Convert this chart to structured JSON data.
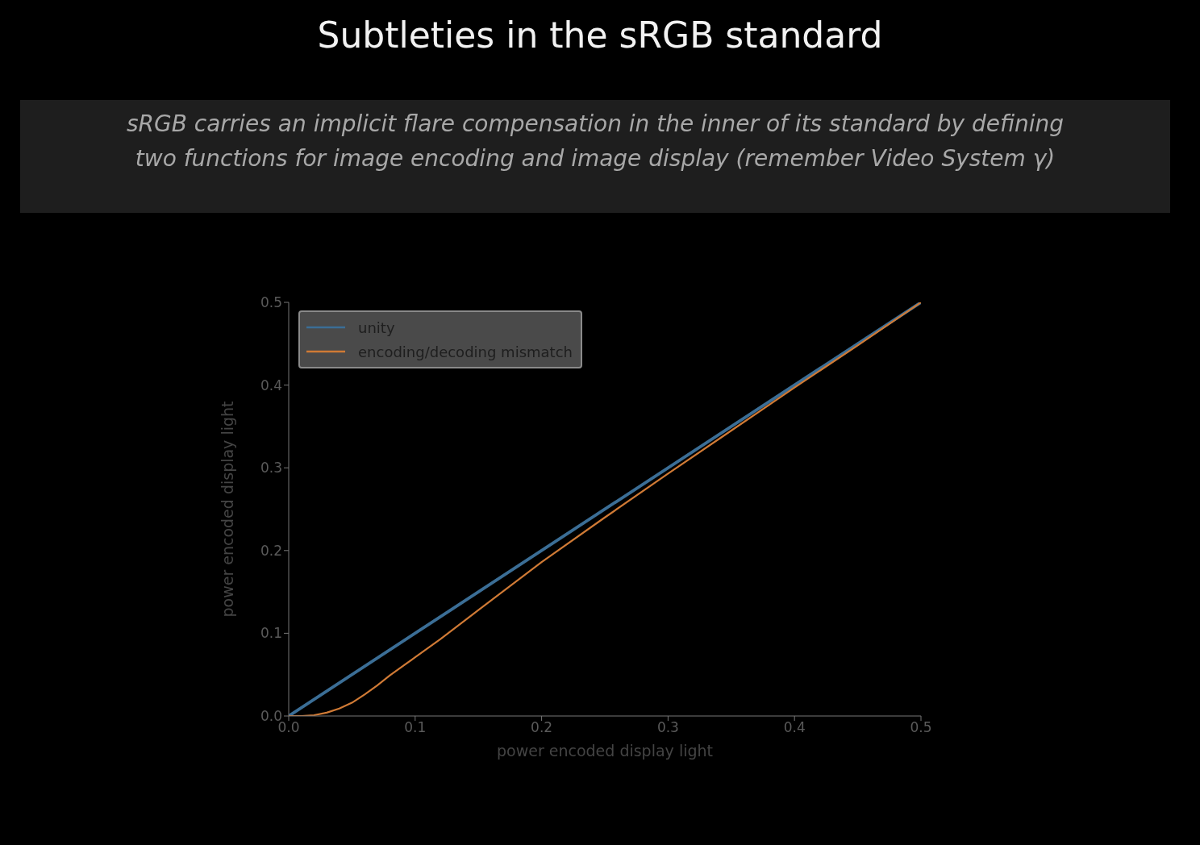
{
  "chart_data": {
    "type": "line",
    "title": "Subtleties in the sRGB standard",
    "subtitle": "sRGB carries an implicit flare compensation in the inner of its standard by defining two functions for image encoding and image display (remember Video System γ)",
    "xlabel": "power encoded display light",
    "ylabel": "power encoded display light",
    "xlim": [
      0,
      0.5
    ],
    "ylim": [
      0,
      0.5
    ],
    "xticks": [
      {
        "value": 0,
        "label": "0.0"
      },
      0.1,
      0.2,
      0.3,
      0.4,
      0.5
    ],
    "yticks": [
      {
        "value": 0,
        "label": "0.0"
      },
      0.1,
      0.2,
      0.3,
      0.4,
      0.5
    ],
    "grid": false,
    "legend": "top left",
    "marker": "none",
    "line_style": "solid",
    "series": [
      {
        "name": "unity",
        "color": "#3b6e96",
        "x": [
          0,
          0.5
        ],
        "values": [
          0,
          0.5
        ]
      },
      {
        "name": "encoding/decoding mismatch",
        "color": "#d07a35",
        "x": [
          0,
          0.01,
          0.02,
          0.03,
          0.04,
          0.05,
          0.06,
          0.07,
          0.08,
          0.09,
          0.1,
          0.12,
          0.15,
          0.2,
          0.25,
          0.3,
          0.35,
          0.4,
          0.45,
          0.5
        ],
        "values": [
          0,
          0,
          0.001,
          0.004,
          0.009,
          0.016,
          0.026,
          0.037,
          0.049,
          0.06,
          0.071,
          0.093,
          0.128,
          0.186,
          0.24,
          0.293,
          0.345,
          0.397,
          0.448,
          0.5
        ]
      }
    ]
  }
}
